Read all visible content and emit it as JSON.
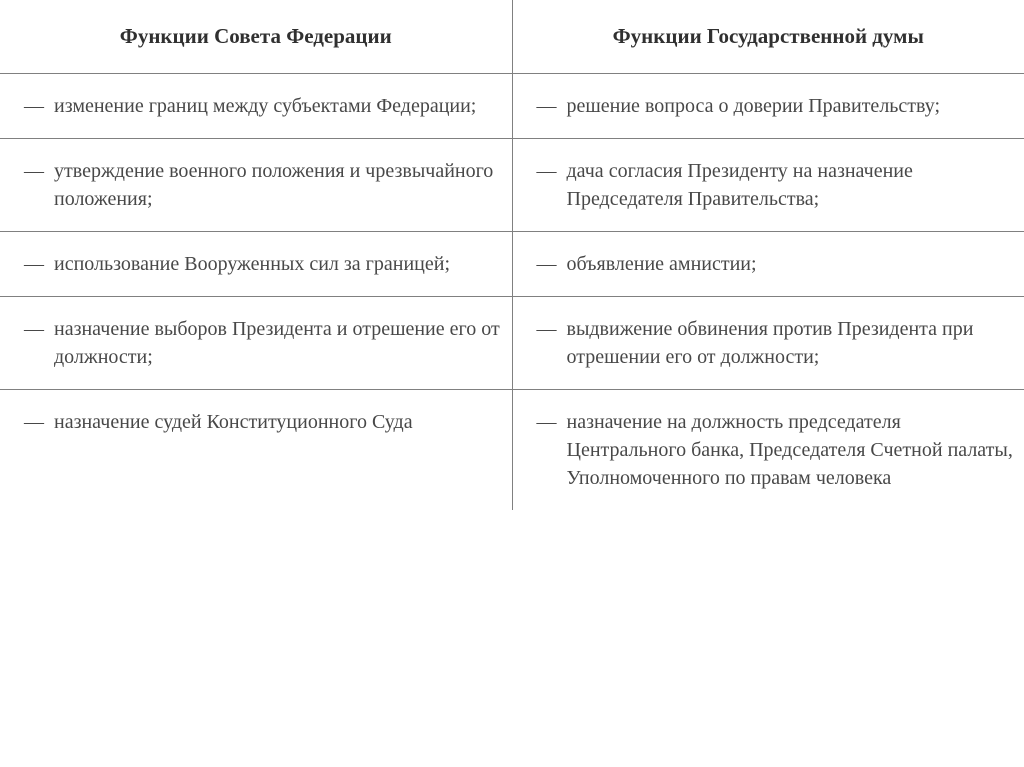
{
  "table": {
    "headers": {
      "left": "Функции Совета Федерации",
      "right": "Функции Государственной думы"
    },
    "rows": [
      {
        "left": "изменение границ между субъек­тами Федерации;",
        "right": "решение вопроса о доверии Правительству;"
      },
      {
        "left": "утверждение военного положения и чрезвычайного положения;",
        "right": "дача согласия Президенту на назначение Председателя Правительства;"
      },
      {
        "left": "использование Вооруженных сил за границей;",
        "right": "объявление амнистии;"
      },
      {
        "left": "назначение выборов Президента и отрешение его от должности;",
        "right": "выдвижение обвинения против Президента при отрешении его от должности;"
      },
      {
        "left": "назначение судей Конституцион­ного Суда",
        "right": "назначение на должность пред­седателя Центрального банка, Председателя Счетной палаты, Уполномоченного по правам человека"
      }
    ],
    "dash": "—"
  },
  "styling": {
    "font_family": "Georgia, Times New Roman, serif",
    "header_fontsize": 21,
    "cell_fontsize": 20,
    "text_color": "#484848",
    "header_color": "#303030",
    "border_color": "#808080",
    "background_color": "#ffffff",
    "line_height": 1.4
  }
}
